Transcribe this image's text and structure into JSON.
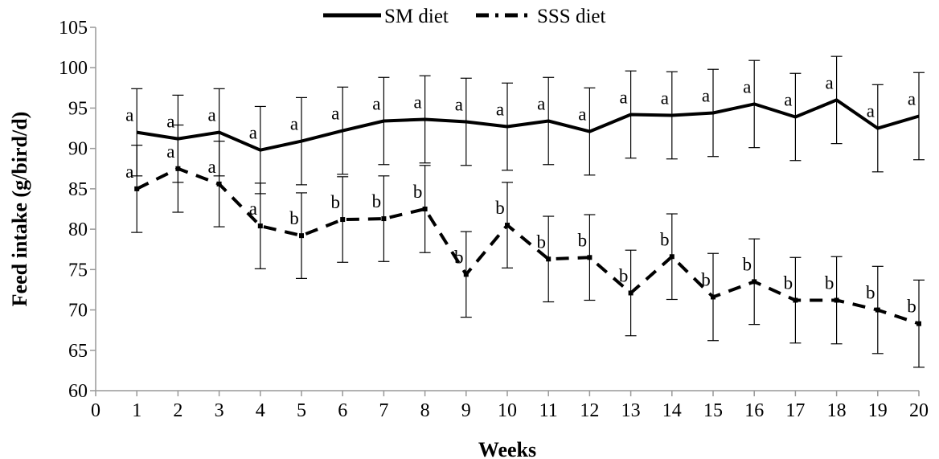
{
  "chart_data": {
    "type": "line",
    "xlabel": "Weeks",
    "ylabel": "Feed intake (g/bird/d)",
    "xlim": [
      0,
      20
    ],
    "ylim": [
      60,
      105
    ],
    "x_ticks": [
      "0",
      "1",
      "2",
      "3",
      "4",
      "5",
      "6",
      "7",
      "8",
      "9",
      "10",
      "11",
      "12",
      "13",
      "14",
      "15",
      "16",
      "17",
      "18",
      "19",
      "20"
    ],
    "y_ticks": [
      "60",
      "65",
      "70",
      "75",
      "80",
      "85",
      "90",
      "95",
      "100",
      "105"
    ],
    "legend_position": "top-center",
    "grid": false,
    "x": [
      1,
      2,
      3,
      4,
      5,
      6,
      7,
      8,
      9,
      10,
      11,
      12,
      13,
      14,
      15,
      16,
      17,
      18,
      19,
      20
    ],
    "series": [
      {
        "name": "SM diet",
        "style": "solid",
        "color": "#000000",
        "values": [
          92.0,
          91.2,
          92.0,
          89.8,
          90.9,
          92.2,
          93.4,
          93.6,
          93.3,
          92.7,
          93.4,
          92.1,
          94.2,
          94.1,
          94.4,
          95.5,
          93.9,
          96.0,
          92.5,
          94.0
        ],
        "error": [
          5.4,
          5.4,
          5.4,
          5.4,
          5.4,
          5.4,
          5.4,
          5.4,
          5.4,
          5.4,
          5.4,
          5.4,
          5.4,
          5.4,
          5.4,
          5.4,
          5.4,
          5.4,
          5.4,
          5.4
        ],
        "labels": [
          "a",
          "a",
          "a",
          "a",
          "a",
          "a",
          "a",
          "a",
          "a",
          "a",
          "a",
          "a",
          "a",
          "a",
          "a",
          "a",
          "a",
          "a",
          "a",
          "a"
        ]
      },
      {
        "name": "SSS diet",
        "style": "dashed",
        "color": "#000000",
        "values": [
          85.0,
          87.5,
          85.6,
          80.4,
          79.2,
          81.2,
          81.3,
          82.5,
          74.4,
          80.5,
          76.3,
          76.5,
          72.1,
          76.6,
          71.6,
          73.5,
          71.2,
          71.2,
          70.0,
          68.3
        ],
        "error": [
          5.4,
          5.4,
          5.3,
          5.3,
          5.3,
          5.3,
          5.3,
          5.4,
          5.3,
          5.3,
          5.3,
          5.3,
          5.3,
          5.3,
          5.4,
          5.3,
          5.3,
          5.4,
          5.4,
          5.4
        ],
        "labels": [
          "a",
          "a",
          "a",
          "a",
          "b",
          "b",
          "b",
          "b",
          "b",
          "b",
          "b",
          "b",
          "b",
          "b",
          "b",
          "b",
          "b",
          "b",
          "b",
          "b"
        ]
      }
    ]
  }
}
